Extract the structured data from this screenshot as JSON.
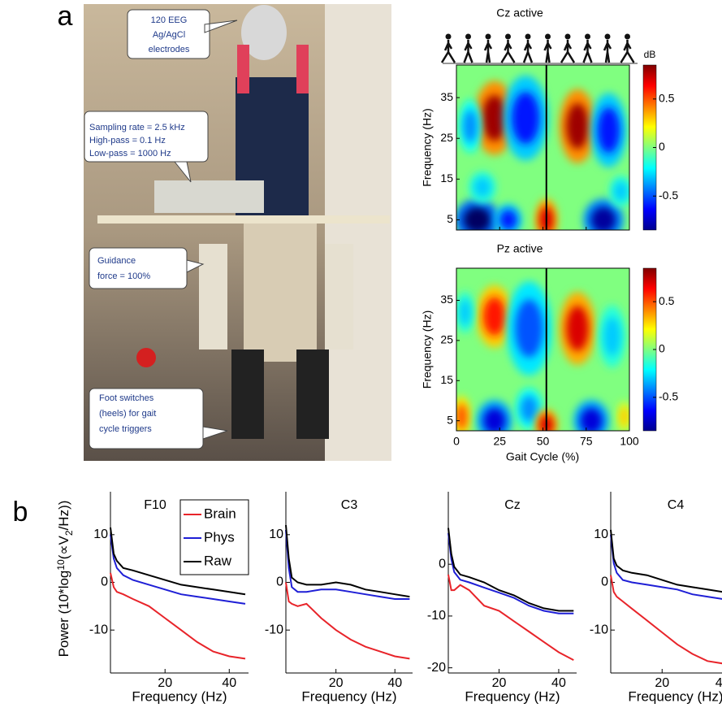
{
  "panel_a": {
    "label": "a",
    "callouts": [
      [
        "120 EEG",
        "Ag/AgCl",
        "electrodes"
      ],
      [
        "Sampling rate = 2.5 kHz",
        "High-pass = 0.1 Hz",
        "Low-pass = 1000 Hz"
      ],
      [
        "Guidance",
        "force = 100%"
      ],
      [
        "Foot switches",
        "(heels) for gait",
        "cycle triggers"
      ]
    ],
    "heatmaps": [
      {
        "title": "Cz active",
        "blobs": [
          {
            "x": 22,
            "y": 30,
            "rx": 9,
            "ry": 7,
            "value": 0.8
          },
          {
            "x": 40,
            "y": 30,
            "rx": 10,
            "ry": 8,
            "value": -0.6
          },
          {
            "x": 8,
            "y": 28,
            "rx": 5,
            "ry": 5,
            "value": -0.4
          },
          {
            "x": 70,
            "y": 28,
            "rx": 8,
            "ry": 7,
            "value": 0.8
          },
          {
            "x": 88,
            "y": 27,
            "rx": 8,
            "ry": 7,
            "value": -0.6
          },
          {
            "x": 12,
            "y": 5,
            "rx": 10,
            "ry": 4,
            "value": -0.9
          },
          {
            "x": 30,
            "y": 5,
            "rx": 6,
            "ry": 3,
            "value": -0.6
          },
          {
            "x": 52,
            "y": 5,
            "rx": 5,
            "ry": 4,
            "value": 0.7
          },
          {
            "x": 85,
            "y": 5,
            "rx": 9,
            "ry": 4,
            "value": -0.8
          },
          {
            "x": 15,
            "y": 13,
            "rx": 6,
            "ry": 3,
            "value": -0.3
          },
          {
            "x": 95,
            "y": 12,
            "rx": 5,
            "ry": 3,
            "value": -0.3
          }
        ]
      },
      {
        "title": "Pz active",
        "blobs": [
          {
            "x": 22,
            "y": 31,
            "rx": 8,
            "ry": 6,
            "value": 0.6
          },
          {
            "x": 42,
            "y": 28,
            "rx": 10,
            "ry": 9,
            "value": -0.5
          },
          {
            "x": 5,
            "y": 32,
            "rx": 4,
            "ry": 4,
            "value": -0.3
          },
          {
            "x": 70,
            "y": 28,
            "rx": 8,
            "ry": 7,
            "value": 0.7
          },
          {
            "x": 90,
            "y": 26,
            "rx": 6,
            "ry": 6,
            "value": -0.3
          },
          {
            "x": 3,
            "y": 6,
            "rx": 4,
            "ry": 4,
            "value": 0.5
          },
          {
            "x": 22,
            "y": 5,
            "rx": 8,
            "ry": 4,
            "value": -0.7
          },
          {
            "x": 42,
            "y": 8,
            "rx": 6,
            "ry": 4,
            "value": -0.4
          },
          {
            "x": 52,
            "y": 4,
            "rx": 5,
            "ry": 3,
            "value": 0.7
          },
          {
            "x": 78,
            "y": 5,
            "rx": 8,
            "ry": 4,
            "value": -0.7
          },
          {
            "x": 97,
            "y": 6,
            "rx": 3,
            "ry": 3,
            "value": 0.3
          }
        ]
      }
    ],
    "ylabel": "Frequency (Hz)",
    "ylim": [
      2.5,
      43
    ],
    "yticks": [
      5,
      15,
      25,
      35
    ],
    "xlabel": "Gait Cycle (%)",
    "xlim": [
      0,
      100
    ],
    "xticks": [
      0,
      25,
      50,
      75,
      100
    ],
    "event_line": 52,
    "colorbar": {
      "label": "dB",
      "lim": [
        -0.85,
        0.85
      ],
      "ticks": [
        0.5,
        0,
        -0.5
      ]
    }
  },
  "panel_b": {
    "label": "b",
    "ylabel": [
      "Power (10*log",
      "10",
      "(∝V",
      "2",
      "/Hz))"
    ],
    "xlabel": "Frequency (Hz)",
    "x": [
      3,
      4,
      5,
      7,
      10,
      15,
      20,
      25,
      30,
      35,
      40,
      45
    ],
    "xlim": [
      3,
      46
    ],
    "xticks": [
      20,
      40
    ],
    "series": [
      {
        "name": "Brain",
        "color": "#e8242a"
      },
      {
        "name": "Phys",
        "color": "#1f1fd6"
      },
      {
        "name": "Raw",
        "color": "#000000"
      }
    ],
    "charts": [
      {
        "title": "F10",
        "ylim": [
          -19,
          19
        ],
        "yticks": [
          -10,
          0,
          10
        ],
        "values": [
          [
            2,
            -1,
            -2,
            -2.5,
            -3.5,
            -5,
            -7.5,
            -10,
            -12.5,
            -14.5,
            -15.5,
            -16
          ],
          [
            10,
            5,
            3,
            1.5,
            0.5,
            -0.5,
            -1.5,
            -2.5,
            -3,
            -3.5,
            -4,
            -4.5
          ],
          [
            11.5,
            6,
            4.5,
            3,
            2.5,
            1.5,
            0.5,
            -0.5,
            -1,
            -1.5,
            -2,
            -2.5
          ]
        ]
      },
      {
        "title": "C3",
        "ylim": [
          -19,
          19
        ],
        "yticks": [
          -10,
          0,
          10
        ],
        "values": [
          [
            0,
            -4,
            -4.5,
            -5,
            -4.5,
            -7.5,
            -10,
            -12,
            -13.5,
            -14.5,
            -15.5,
            -16
          ],
          [
            11,
            3,
            -1,
            -2,
            -2,
            -1.5,
            -1.5,
            -2,
            -2.5,
            -3,
            -3.5,
            -3.5
          ],
          [
            12,
            5,
            1,
            0,
            -0.5,
            -0.5,
            0,
            -0.5,
            -1.5,
            -2,
            -2.5,
            -3
          ]
        ]
      },
      {
        "title": "Cz",
        "ylim": [
          -21,
          14
        ],
        "yticks": [
          -20,
          -10,
          0
        ],
        "values": [
          [
            -2,
            -5,
            -5,
            -4,
            -5,
            -8,
            -9,
            -11,
            -13,
            -15,
            -17,
            -18.5
          ],
          [
            6,
            1,
            -1.5,
            -3,
            -3.5,
            -4.5,
            -5.5,
            -6.5,
            -8,
            -9,
            -9.5,
            -9.5
          ],
          [
            7,
            2,
            -0.5,
            -2,
            -2.5,
            -3.5,
            -5,
            -6,
            -7.5,
            -8.5,
            -9,
            -9
          ]
        ]
      },
      {
        "title": "C4",
        "ylim": [
          -19,
          19
        ],
        "yticks": [
          -10,
          0,
          10
        ],
        "values": [
          [
            1.5,
            -2,
            -3,
            -4,
            -5.5,
            -8,
            -10.5,
            -13,
            -15,
            -16.5,
            -17,
            -17.5
          ],
          [
            10,
            4,
            2,
            0.5,
            0,
            -0.5,
            -1,
            -1.5,
            -2.5,
            -3,
            -3.5,
            -4
          ],
          [
            11,
            5,
            3.5,
            2.5,
            2,
            1.5,
            0.5,
            -0.5,
            -1,
            -1.5,
            -2,
            -2.5
          ]
        ]
      }
    ]
  }
}
